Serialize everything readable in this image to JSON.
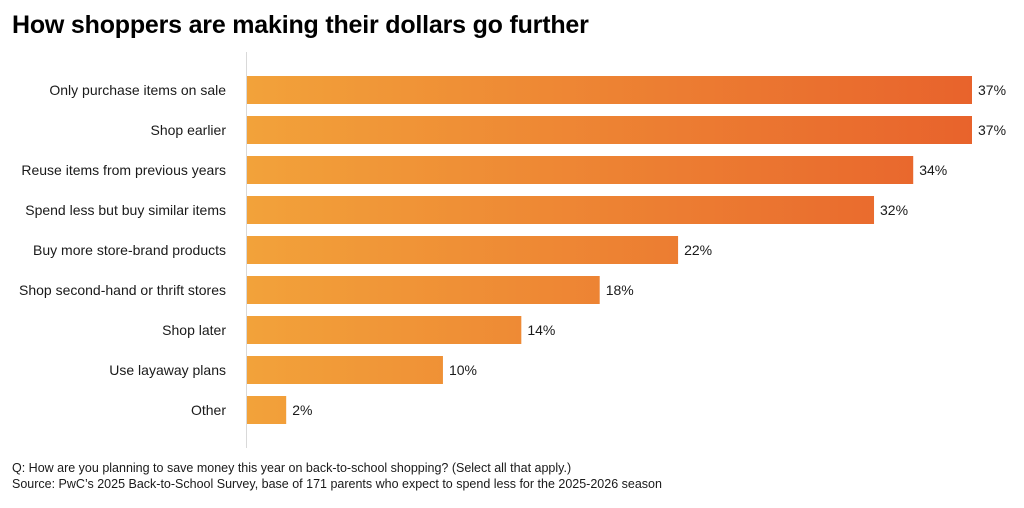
{
  "title": "How shoppers are making their dollars go further",
  "question_note": "Q: How are you planning to save money this year on back-to-school shopping? (Select all that apply.)",
  "source_note": "Source: PwC’s 2025 Back-to-School Survey, base of 171 parents who expect to spend less for the 2025-2026 season",
  "colors": {
    "bar_start": "#f2a23a",
    "bar_end": "#e8632c",
    "axis": "#d9d9d9"
  },
  "chart_data": {
    "type": "bar",
    "orientation": "horizontal",
    "title": "How shoppers are making their dollars go further",
    "categories": [
      "Only purchase items on sale",
      "Shop earlier",
      "Reuse items from previous years",
      "Spend less but buy similar items",
      "Buy more store-brand products",
      "Shop second-hand or thrift stores",
      "Shop later",
      "Use layaway plans",
      "Other"
    ],
    "values": [
      37,
      37,
      34,
      32,
      22,
      18,
      14,
      10,
      2
    ],
    "value_labels": [
      "37%",
      "37%",
      "34%",
      "32%",
      "22%",
      "18%",
      "14%",
      "10%",
      "2%"
    ],
    "unit": "%",
    "xlim": [
      0,
      37
    ],
    "grid": false,
    "legend": "none"
  }
}
